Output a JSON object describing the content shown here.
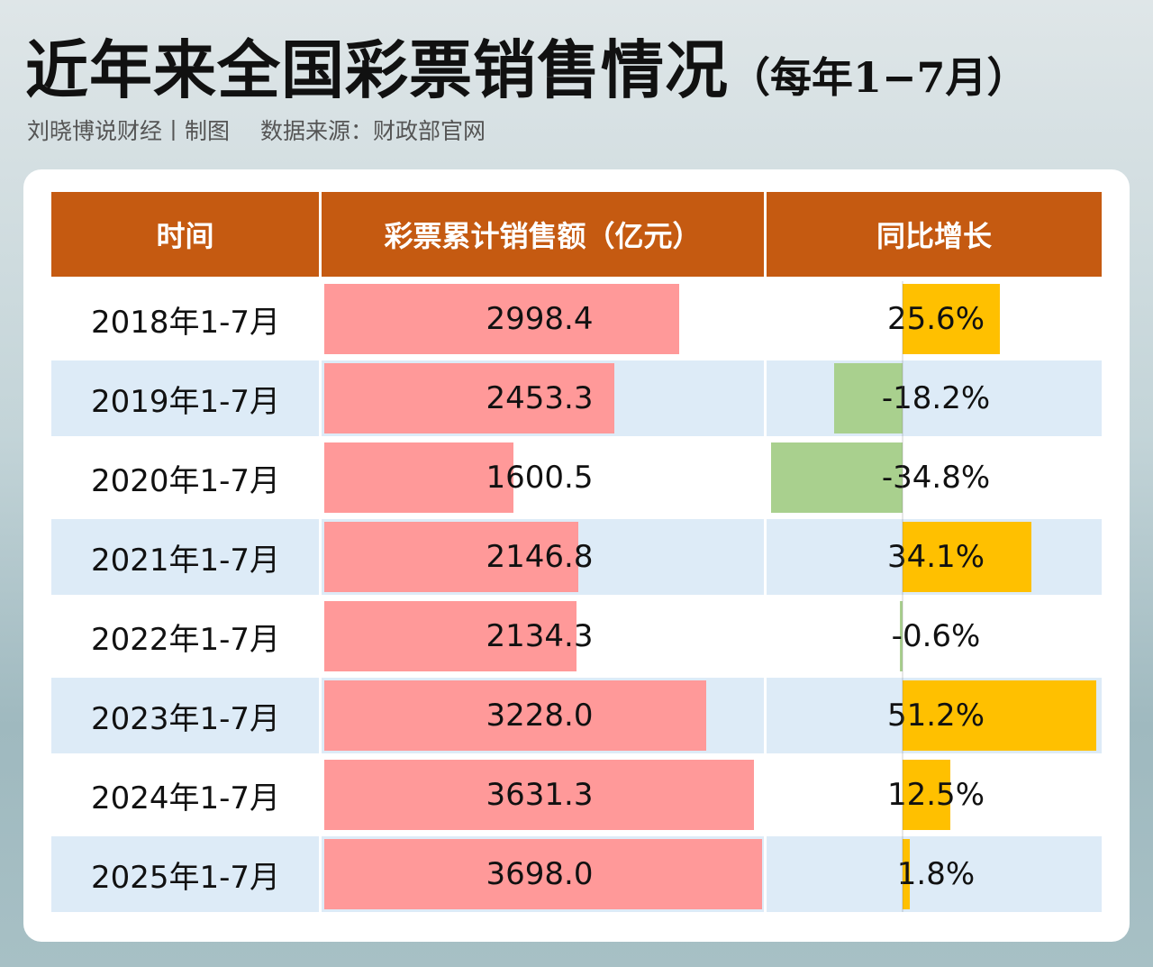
{
  "title": "近年来全国彩票销售情况",
  "title_suffix": "（每年1−7月）",
  "credit": "刘晓博说财经丨制图",
  "source": "数据来源：财政部官网",
  "colors": {
    "header": "#c55a11",
    "sales_bar": "#ff9999",
    "growth_positive": "#ffc000",
    "growth_negative": "#a9d08e",
    "row_alt": "#ddebf7"
  },
  "chart_data": {
    "type": "table",
    "columns": [
      "时间",
      "彩票累计销售额（亿元）",
      "同比增长"
    ],
    "rows": [
      {
        "period": "2018年1-7月",
        "sales": 2998.4,
        "sales_label": "2998.4",
        "growth": 25.6,
        "growth_label": "25.6%"
      },
      {
        "period": "2019年1-7月",
        "sales": 2453.3,
        "sales_label": "2453.3",
        "growth": -18.2,
        "growth_label": "-18.2%"
      },
      {
        "period": "2020年1-7月",
        "sales": 1600.5,
        "sales_label": "1600.5",
        "growth": -34.8,
        "growth_label": "-34.8%"
      },
      {
        "period": "2021年1-7月",
        "sales": 2146.8,
        "sales_label": "2146.8",
        "growth": 34.1,
        "growth_label": "34.1%"
      },
      {
        "period": "2022年1-7月",
        "sales": 2134.3,
        "sales_label": "2134.3",
        "growth": -0.6,
        "growth_label": "-0.6%"
      },
      {
        "period": "2023年1-7月",
        "sales": 3228.0,
        "sales_label": "3228.0",
        "growth": 51.2,
        "growth_label": "51.2%"
      },
      {
        "period": "2024年1-7月",
        "sales": 3631.3,
        "sales_label": "3631.3",
        "growth": 12.5,
        "growth_label": "12.5%"
      },
      {
        "period": "2025年1-7月",
        "sales": 3698.0,
        "sales_label": "3698.0",
        "growth": 1.8,
        "growth_label": "1.8%"
      }
    ]
  }
}
